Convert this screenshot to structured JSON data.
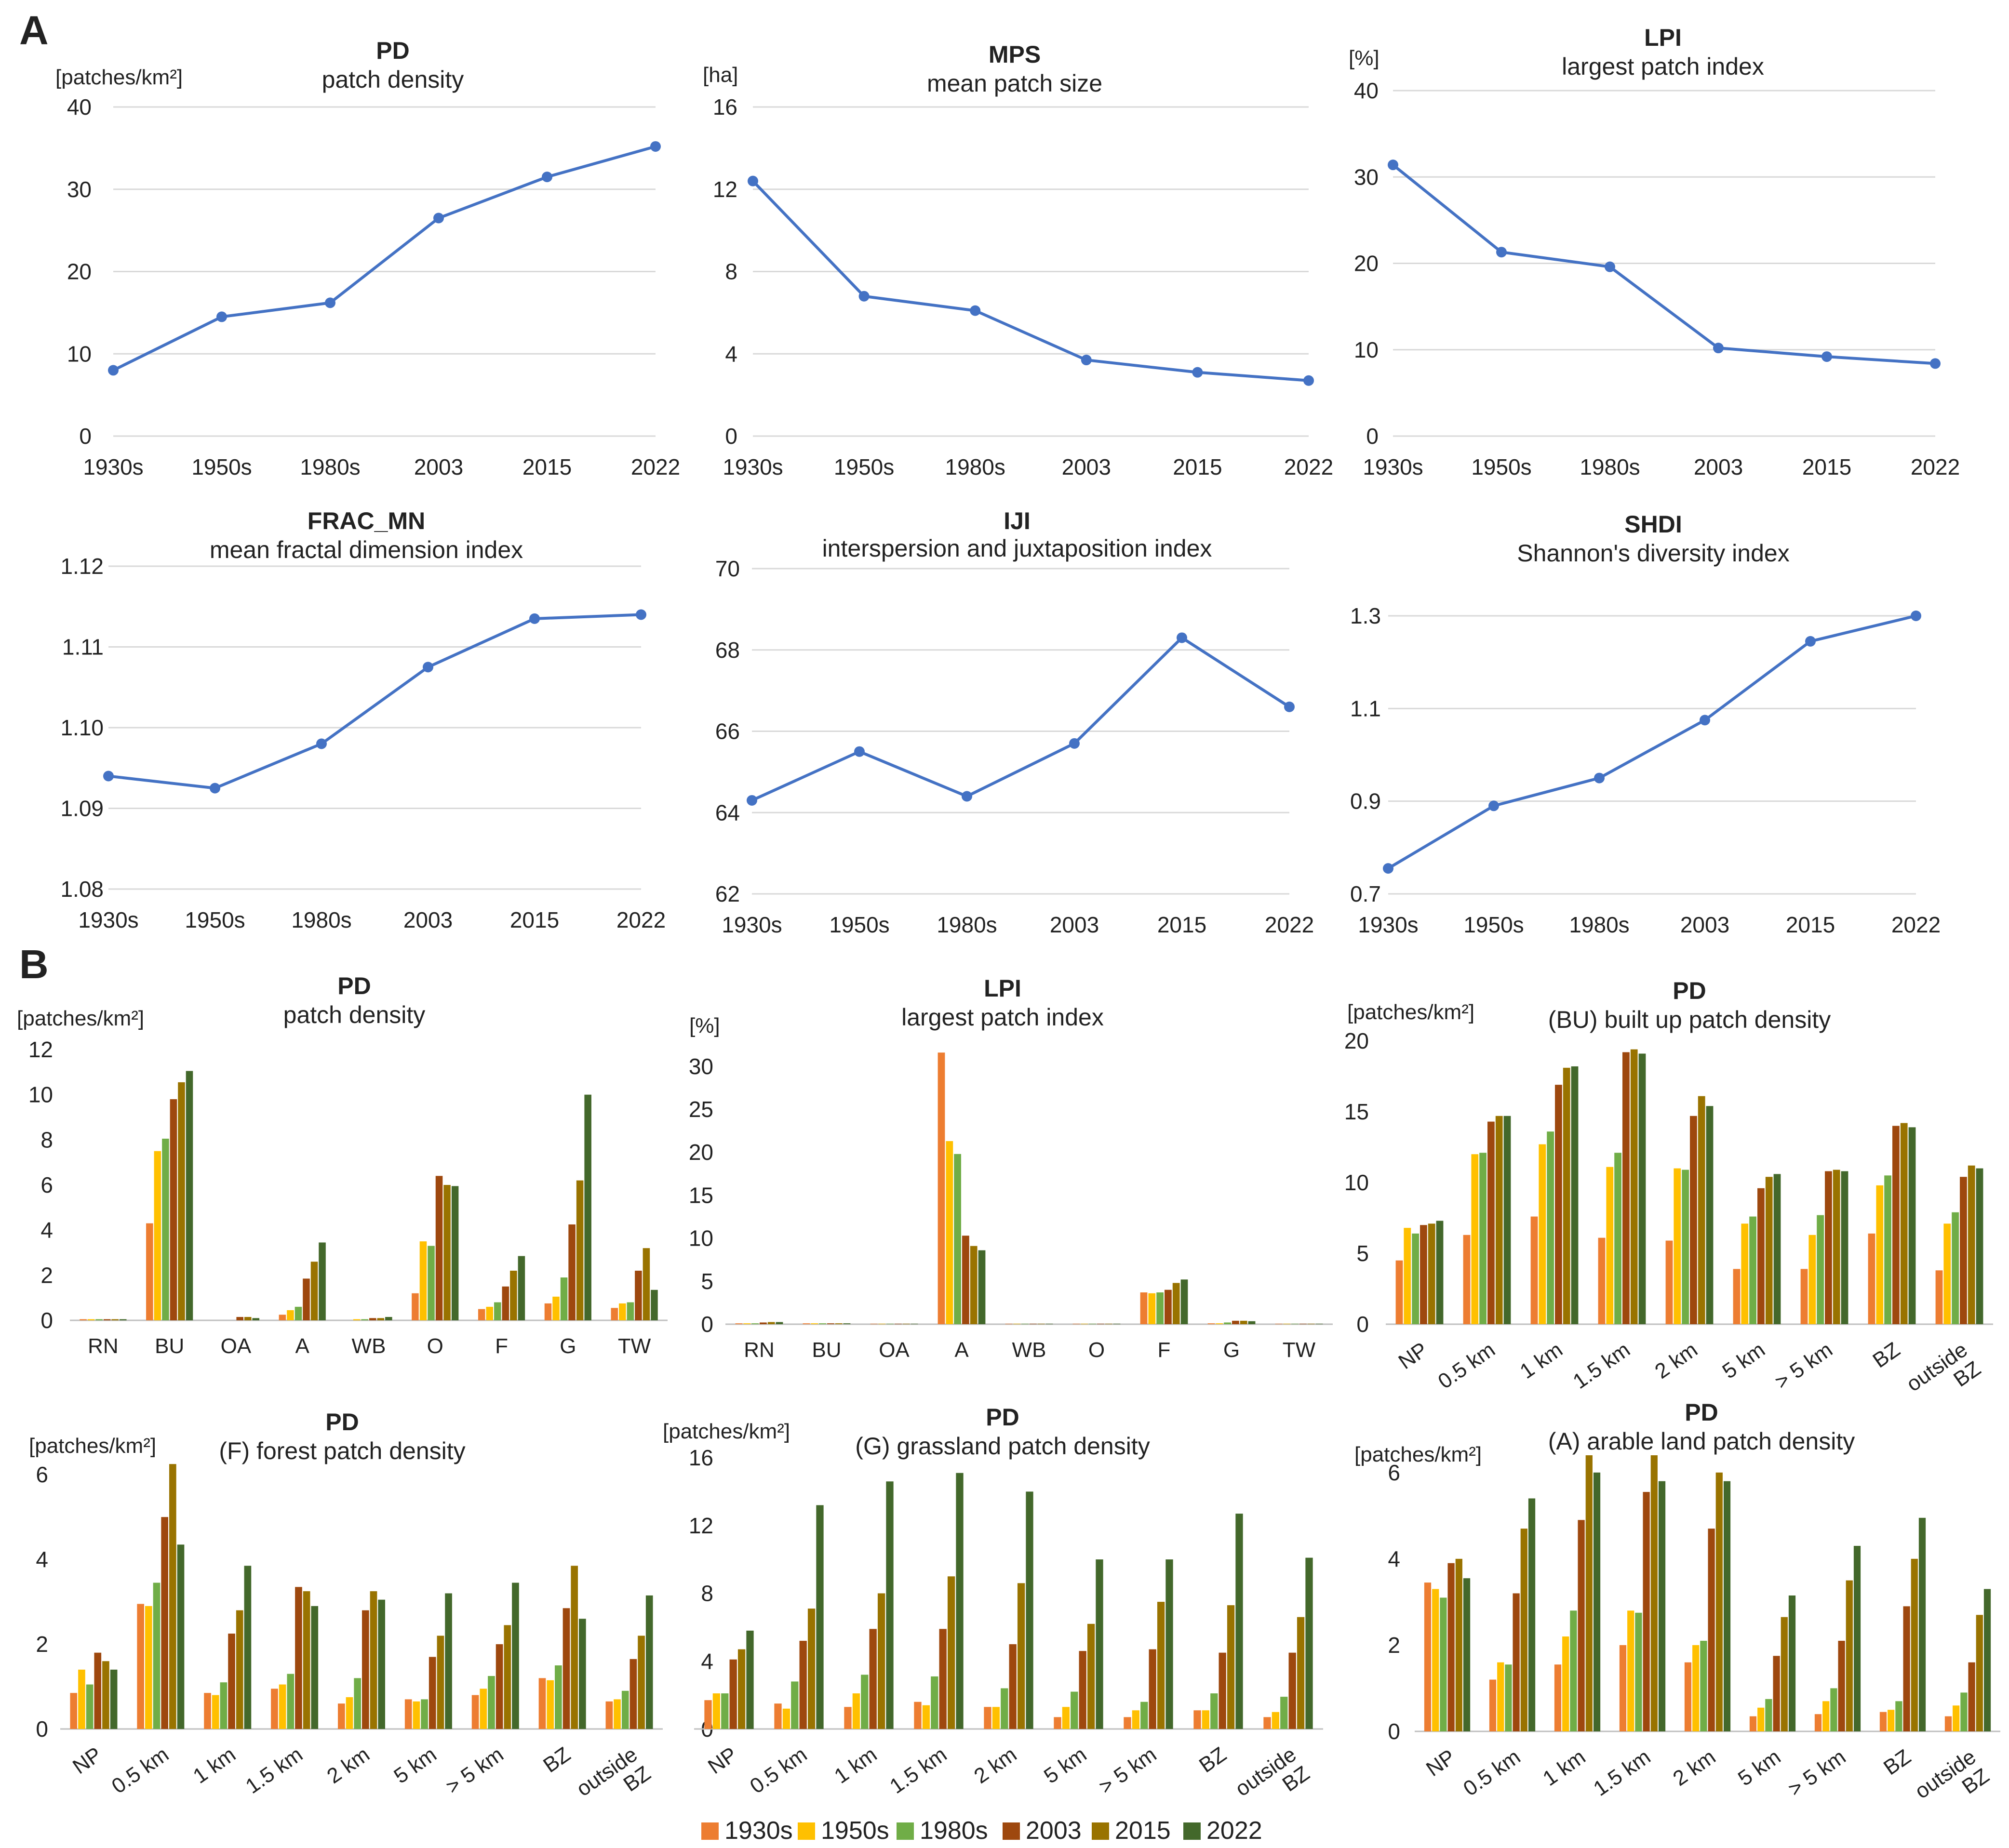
{
  "section_labels": [
    "A",
    "B"
  ],
  "chart_data": [
    {
      "type": "line",
      "title": "PD",
      "subtitle": "patch density",
      "ylabel": "[patches/km²]",
      "x": [
        "1930s",
        "1950s",
        "1980s",
        "2003",
        "2015",
        "2022"
      ],
      "values": [
        8.0,
        14.5,
        16.2,
        26.5,
        31.5,
        35.2
      ],
      "ylim": [
        0,
        40
      ],
      "yticks": [
        "0",
        "10",
        "20",
        "30",
        "40"
      ],
      "grid": true,
      "color": "#4472C4"
    },
    {
      "type": "line",
      "title": "MPS",
      "subtitle": "mean patch size",
      "ylabel": "[ha]",
      "x": [
        "1930s",
        "1950s",
        "1980s",
        "2003",
        "2015",
        "2022"
      ],
      "values": [
        12.4,
        6.8,
        6.1,
        3.7,
        3.1,
        2.7
      ],
      "ylim": [
        0,
        16
      ],
      "yticks": [
        "0",
        "4",
        "8",
        "12",
        "16"
      ],
      "grid": true,
      "color": "#4472C4"
    },
    {
      "type": "line",
      "title": "LPI",
      "subtitle": "largest patch index",
      "ylabel": "[%]",
      "x": [
        "1930s",
        "1950s",
        "1980s",
        "2003",
        "2015",
        "2022"
      ],
      "values": [
        31.4,
        21.3,
        19.6,
        10.2,
        9.2,
        8.4
      ],
      "ylim": [
        0,
        40
      ],
      "yticks": [
        "0",
        "10",
        "20",
        "30",
        "40"
      ],
      "grid": true,
      "color": "#4472C4"
    },
    {
      "type": "line",
      "title": "FRAC_MN",
      "subtitle": "mean fractal dimension index",
      "ylabel": "",
      "x": [
        "1930s",
        "1950s",
        "1980s",
        "2003",
        "2015",
        "2022"
      ],
      "values": [
        1.094,
        1.0925,
        1.098,
        1.1075,
        1.1135,
        1.114
      ],
      "ylim": [
        1.08,
        1.12
      ],
      "yticks": [
        "1.08",
        "1.09",
        "1.10",
        "1.11",
        "1.12"
      ],
      "grid": true,
      "color": "#4472C4"
    },
    {
      "type": "line",
      "title": "IJI",
      "subtitle": "interspersion and juxtaposition index",
      "ylabel": "",
      "x": [
        "1930s",
        "1950s",
        "1980s",
        "2003",
        "2015",
        "2022"
      ],
      "values": [
        64.3,
        65.5,
        64.4,
        65.7,
        68.3,
        66.6
      ],
      "ylim": [
        62,
        70
      ],
      "yticks": [
        "62",
        "64",
        "66",
        "68",
        "70"
      ],
      "grid": true,
      "color": "#4472C4"
    },
    {
      "type": "line",
      "title": "SHDI",
      "subtitle": "Shannon's diversity index",
      "ylabel": "",
      "x": [
        "1930s",
        "1950s",
        "1980s",
        "2003",
        "2015",
        "2022"
      ],
      "values": [
        0.755,
        0.89,
        0.95,
        1.075,
        1.245,
        1.3
      ],
      "ylim": [
        0.7,
        1.3
      ],
      "yticks": [
        "0.7",
        "0.9",
        "1.1",
        "1.3"
      ],
      "grid": true,
      "color": "#4472C4"
    },
    {
      "type": "bar",
      "title": "PD",
      "subtitle": "patch density",
      "ylabel": "[patches/km²]",
      "categories": [
        "RN",
        "BU",
        "OA",
        "A",
        "WB",
        "O",
        "F",
        "G",
        "TW"
      ],
      "ylim": [
        0,
        12
      ],
      "yticks": [
        "0",
        "2",
        "4",
        "6",
        "8",
        "10",
        "12"
      ],
      "grid": false,
      "series": [
        {
          "name": "1930s",
          "values": [
            0.05,
            4.3,
            0.0,
            0.25,
            0.0,
            1.2,
            0.5,
            0.75,
            0.55
          ]
        },
        {
          "name": "1950s",
          "values": [
            0.05,
            7.5,
            0.0,
            0.45,
            0.05,
            3.5,
            0.6,
            1.05,
            0.75
          ]
        },
        {
          "name": "1980s",
          "values": [
            0.05,
            8.05,
            0.0,
            0.6,
            0.05,
            3.3,
            0.8,
            1.9,
            0.8
          ]
        },
        {
          "name": "2003",
          "values": [
            0.05,
            9.8,
            0.15,
            1.85,
            0.1,
            6.4,
            1.5,
            4.25,
            2.2
          ]
        },
        {
          "name": "2015",
          "values": [
            0.05,
            10.55,
            0.15,
            2.6,
            0.1,
            6.0,
            2.2,
            6.2,
            3.2
          ]
        },
        {
          "name": "2022",
          "values": [
            0.05,
            11.05,
            0.1,
            3.45,
            0.15,
            5.95,
            2.85,
            10.0,
            1.35
          ]
        }
      ]
    },
    {
      "type": "bar",
      "title": "LPI",
      "subtitle": "largest patch index",
      "ylabel": "[%]",
      "categories": [
        "RN",
        "BU",
        "OA",
        "A",
        "WB",
        "O",
        "F",
        "G",
        "TW"
      ],
      "ylim": [
        0,
        31
      ],
      "yticks": [
        "0",
        "5",
        "10",
        "15",
        "20",
        "25",
        "30"
      ],
      "grid": false,
      "series": [
        {
          "name": "1930s",
          "values": [
            0.1,
            0.1,
            0.05,
            31.6,
            0.05,
            0.05,
            3.7,
            0.1,
            0.05
          ]
        },
        {
          "name": "1950s",
          "values": [
            0.1,
            0.1,
            0.05,
            21.3,
            0.05,
            0.05,
            3.6,
            0.1,
            0.05
          ]
        },
        {
          "name": "1980s",
          "values": [
            0.1,
            0.1,
            0.05,
            19.8,
            0.05,
            0.05,
            3.7,
            0.2,
            0.05
          ]
        },
        {
          "name": "2003",
          "values": [
            0.2,
            0.1,
            0.05,
            10.3,
            0.05,
            0.05,
            4.0,
            0.4,
            0.05
          ]
        },
        {
          "name": "2015",
          "values": [
            0.25,
            0.1,
            0.05,
            9.1,
            0.05,
            0.05,
            4.8,
            0.4,
            0.05
          ]
        },
        {
          "name": "2022",
          "values": [
            0.25,
            0.1,
            0.05,
            8.6,
            0.05,
            0.05,
            5.2,
            0.35,
            0.05
          ]
        }
      ]
    },
    {
      "type": "bar",
      "title": "PD",
      "subtitle": "(BU) built up patch density",
      "ylabel": "[patches/km²]",
      "categories": [
        "NP",
        "0.5 km",
        "1 km",
        "1.5 km",
        "2 km",
        "5 km",
        "> 5 km",
        "BZ",
        "outside BZ"
      ],
      "ylim": [
        0,
        20
      ],
      "yticks": [
        "0",
        "5",
        "10",
        "15",
        "20"
      ],
      "grid": false,
      "series": [
        {
          "name": "1930s",
          "values": [
            4.5,
            6.3,
            7.6,
            6.1,
            5.9,
            3.9,
            3.9,
            6.4,
            3.8
          ]
        },
        {
          "name": "1950s",
          "values": [
            6.8,
            12.0,
            12.7,
            11.1,
            11.0,
            7.1,
            6.3,
            9.8,
            7.1
          ]
        },
        {
          "name": "1980s",
          "values": [
            6.4,
            12.1,
            13.6,
            12.1,
            10.9,
            7.6,
            7.7,
            10.5,
            7.9
          ]
        },
        {
          "name": "2003",
          "values": [
            7.0,
            14.3,
            16.9,
            19.2,
            14.7,
            9.6,
            10.8,
            14.0,
            10.4
          ]
        },
        {
          "name": "2015",
          "values": [
            7.1,
            14.7,
            18.1,
            19.4,
            16.1,
            10.4,
            10.9,
            14.2,
            11.2
          ]
        },
        {
          "name": "2022",
          "values": [
            7.3,
            14.7,
            18.2,
            19.1,
            15.4,
            10.6,
            10.8,
            13.9,
            11.0
          ]
        }
      ]
    },
    {
      "type": "bar",
      "title": "PD",
      "subtitle": "(F) forest patch density",
      "ylabel": "[patches/km²]",
      "categories": [
        "NP",
        "0.5 km",
        "1 km",
        "1.5 km",
        "2 km",
        "5 km",
        "> 5 km",
        "BZ",
        "outside BZ"
      ],
      "ylim": [
        0,
        6.4
      ],
      "yticks": [
        "0",
        "2",
        "4",
        "6"
      ],
      "grid": false,
      "series": [
        {
          "name": "1930s",
          "values": [
            0.85,
            2.95,
            0.85,
            0.95,
            0.6,
            0.7,
            0.8,
            1.2,
            0.65
          ]
        },
        {
          "name": "1950s",
          "values": [
            1.4,
            2.9,
            0.8,
            1.05,
            0.75,
            0.65,
            0.95,
            1.15,
            0.7
          ]
        },
        {
          "name": "1980s",
          "values": [
            1.05,
            3.45,
            1.1,
            1.3,
            1.2,
            0.7,
            1.25,
            1.5,
            0.9
          ]
        },
        {
          "name": "2003",
          "values": [
            1.8,
            5.0,
            2.25,
            3.35,
            2.8,
            1.7,
            2.0,
            2.85,
            1.65
          ]
        },
        {
          "name": "2015",
          "values": [
            1.6,
            6.25,
            2.8,
            3.25,
            3.25,
            2.2,
            2.45,
            3.85,
            2.2
          ]
        },
        {
          "name": "2022",
          "values": [
            1.4,
            4.35,
            3.85,
            2.9,
            3.05,
            3.2,
            3.45,
            2.6,
            3.15
          ]
        }
      ]
    },
    {
      "type": "bar",
      "title": "PD",
      "subtitle": "(G) grassland patch density",
      "ylabel": "[patches/km²]",
      "categories": [
        "NP",
        "0.5 km",
        "1 km",
        "1.5 km",
        "2 km",
        "5 km",
        "> 5 km",
        "BZ",
        "outside BZ"
      ],
      "ylim": [
        0,
        16
      ],
      "yticks": [
        "0",
        "4",
        "8",
        "12",
        "16"
      ],
      "grid": false,
      "series": [
        {
          "name": "1930s",
          "values": [
            1.7,
            1.5,
            1.3,
            1.6,
            1.3,
            0.7,
            0.7,
            1.1,
            0.7
          ]
        },
        {
          "name": "1950s",
          "values": [
            2.1,
            1.2,
            2.1,
            1.4,
            1.3,
            1.3,
            1.1,
            1.1,
            1.0
          ]
        },
        {
          "name": "1980s",
          "values": [
            2.1,
            2.8,
            3.2,
            3.1,
            2.4,
            2.2,
            1.6,
            2.1,
            1.9
          ]
        },
        {
          "name": "2003",
          "values": [
            4.1,
            5.2,
            5.9,
            5.9,
            5.0,
            4.6,
            4.7,
            4.5,
            4.5
          ]
        },
        {
          "name": "2015",
          "values": [
            4.7,
            7.1,
            8.0,
            9.0,
            8.6,
            6.2,
            7.5,
            7.3,
            6.6
          ]
        },
        {
          "name": "2022",
          "values": [
            5.8,
            13.2,
            14.6,
            15.1,
            14.0,
            10.0,
            10.0,
            12.7,
            10.1
          ]
        }
      ]
    },
    {
      "type": "bar",
      "title": "PD",
      "subtitle": "(A) arable land patch density",
      "ylabel": "[patches/km²]",
      "categories": [
        "NP",
        "0.5 km",
        "1 km",
        "1.5 km",
        "2 km",
        "5 km",
        "> 5 km",
        "BZ",
        "outside BZ"
      ],
      "ylim": [
        0,
        6.4
      ],
      "yticks": [
        "0",
        "2",
        "4",
        "6"
      ],
      "grid": false,
      "series": [
        {
          "name": "1930s",
          "values": [
            3.45,
            1.2,
            1.55,
            2.0,
            1.6,
            0.35,
            0.4,
            0.45,
            0.35
          ]
        },
        {
          "name": "1950s",
          "values": [
            3.3,
            1.6,
            2.2,
            2.8,
            2.0,
            0.55,
            0.7,
            0.5,
            0.6
          ]
        },
        {
          "name": "1980s",
          "values": [
            3.1,
            1.55,
            2.8,
            2.75,
            2.1,
            0.75,
            1.0,
            0.7,
            0.9
          ]
        },
        {
          "name": "2003",
          "values": [
            3.9,
            3.2,
            4.9,
            5.55,
            4.7,
            1.75,
            2.1,
            2.9,
            1.6
          ]
        },
        {
          "name": "2015",
          "values": [
            4.0,
            4.7,
            6.4,
            6.4,
            6.0,
            2.65,
            3.5,
            4.0,
            2.7
          ]
        },
        {
          "name": "2022",
          "values": [
            3.55,
            5.4,
            6.0,
            5.8,
            5.8,
            3.15,
            4.3,
            4.95,
            3.3
          ]
        }
      ]
    }
  ],
  "legend": [
    {
      "label": "1930s",
      "color": "#ED7D31"
    },
    {
      "label": "1950s",
      "color": "#FFC000"
    },
    {
      "label": "1980s",
      "color": "#70AD47"
    },
    {
      "label": "2003",
      "color": "#9E480E"
    },
    {
      "label": "2015",
      "color": "#997300"
    },
    {
      "label": "2022",
      "color": "#43682B"
    }
  ],
  "colors": {
    "line": "#4472C4",
    "grid": "#D9D9D9",
    "axis": "#BFBFBF",
    "text": "#222222"
  }
}
